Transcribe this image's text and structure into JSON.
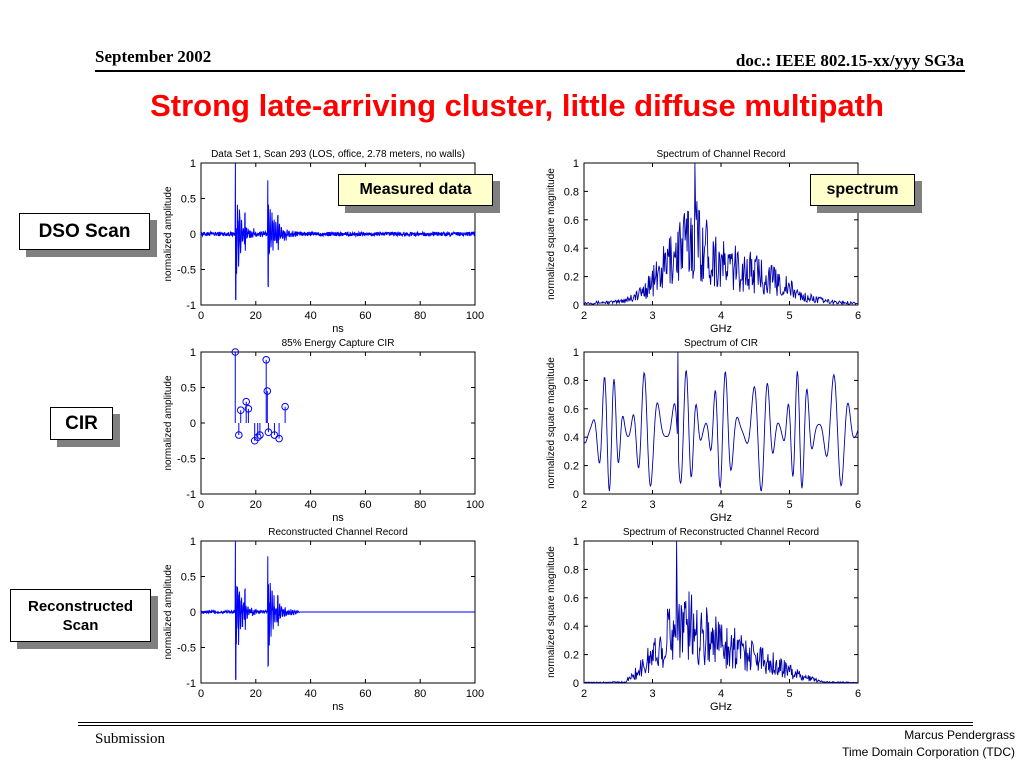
{
  "header": {
    "date": "September 2002",
    "doc": "doc.: IEEE 802.15-xx/yyy SG3a"
  },
  "title": "Strong late-arriving cluster, little diffuse multipath",
  "labels": {
    "dso_scan": "DSO Scan",
    "cir": "CIR",
    "reconstructed": "Reconstructed",
    "reconstructed_2": "Scan",
    "measured": "Measured data",
    "spectrum": "spectrum"
  },
  "footer": {
    "left": "Submission",
    "author": "Marcus Pendergrass",
    "org": "Time Domain Corporation (TDC)"
  },
  "colors": {
    "title": "#ff0000",
    "trace": "#0000ff",
    "spectrum_trace": "#0000aa",
    "callout_fill": "#ffffcc"
  },
  "chart_data": [
    {
      "id": "t1",
      "type": "line",
      "title": "Data Set 1, Scan 293 (LOS, office, 2.78 meters, no walls)",
      "xlabel": "ns",
      "ylabel": "normalized amplitude",
      "xlim": [
        0,
        100
      ],
      "ylim": [
        -1,
        1
      ],
      "xticks": [
        "0",
        "20",
        "40",
        "60",
        "80",
        "100"
      ],
      "yticks": [
        "1",
        "0.5",
        "0",
        "-0.5",
        "-1"
      ],
      "clusters": [
        {
          "t": 12.5,
          "peak": 1.0,
          "trough": -0.95,
          "decay": 2.2,
          "dur": 9
        },
        {
          "t": 16,
          "peak": 0.3,
          "trough": -0.25,
          "decay": 2.5,
          "dur": 8
        },
        {
          "t": 24.3,
          "peak": 0.75,
          "trough": -0.72,
          "decay": 2.6,
          "dur": 9
        },
        {
          "t": 28,
          "peak": 0.25,
          "trough": -0.2,
          "decay": 3,
          "dur": 8
        }
      ],
      "noise": 0.03,
      "noise_end": 100
    },
    {
      "id": "s1",
      "type": "line",
      "title": "Spectrum of Channel Record",
      "xlabel": "GHz",
      "ylabel": "normalized square magnitude",
      "xlim": [
        2,
        6
      ],
      "ylim": [
        0,
        1
      ],
      "xticks": [
        "2",
        "3",
        "4",
        "5",
        "6"
      ],
      "yticks": [
        "1",
        "0.8",
        "0.6",
        "0.4",
        "0.2",
        "0"
      ],
      "envelope": [
        [
          2,
          0.02
        ],
        [
          2.5,
          0.03
        ],
        [
          2.8,
          0.1
        ],
        [
          3.1,
          0.3
        ],
        [
          3.3,
          0.5
        ],
        [
          3.5,
          0.62
        ],
        [
          3.65,
          0.7
        ],
        [
          3.8,
          0.55
        ],
        [
          4.0,
          0.4
        ],
        [
          4.3,
          0.35
        ],
        [
          4.6,
          0.3
        ],
        [
          4.9,
          0.2
        ],
        [
          5.2,
          0.08
        ],
        [
          5.6,
          0.03
        ],
        [
          6,
          0.02
        ]
      ],
      "peak": {
        "x": 3.62,
        "y": 1.0
      }
    },
    {
      "id": "t2",
      "type": "stem",
      "title": "85% Energy Capture CIR",
      "xlabel": "ns",
      "ylabel": "normalized amplitude",
      "xlim": [
        0,
        100
      ],
      "ylim": [
        -1,
        1
      ],
      "xticks": [
        "0",
        "20",
        "40",
        "60",
        "80",
        "100"
      ],
      "yticks": [
        "1",
        "0.5",
        "0",
        "-0.5",
        "-1"
      ],
      "x": [
        12.5,
        13.8,
        14.5,
        16.5,
        17.3,
        19.6,
        20.7,
        21.5,
        23.8,
        24.2,
        24.6,
        26.8,
        28.5,
        30.7
      ],
      "y": [
        1.0,
        -0.17,
        0.18,
        0.3,
        0.2,
        -0.25,
        -0.2,
        -0.17,
        0.89,
        0.45,
        -0.13,
        -0.17,
        -0.22,
        0.23
      ]
    },
    {
      "id": "s2",
      "type": "line",
      "title": "Spectrum of CIR",
      "xlabel": "GHz",
      "ylabel": "normalized square magnitude",
      "xlim": [
        2,
        6
      ],
      "ylim": [
        0,
        1
      ],
      "xticks": [
        "2",
        "3",
        "4",
        "5",
        "6"
      ],
      "yticks": [
        "1",
        "0.8",
        "0.6",
        "0.4",
        "0.2",
        "0"
      ],
      "envelope": [
        [
          2,
          0.55
        ],
        [
          6,
          0.55
        ]
      ],
      "peak": {
        "x": 3.37,
        "y": 1.0
      }
    },
    {
      "id": "t3",
      "type": "line",
      "title": "Reconstructed Channel Record",
      "xlabel": "ns",
      "ylabel": "normalized amplitude",
      "xlim": [
        0,
        100
      ],
      "ylim": [
        -1,
        1
      ],
      "xticks": [
        "0",
        "20",
        "40",
        "60",
        "80",
        "100"
      ],
      "yticks": [
        "1",
        "0.5",
        "0",
        "-0.5",
        "-1"
      ],
      "clusters": [
        {
          "t": 12.5,
          "peak": 1.0,
          "trough": -0.95,
          "decay": 2.2,
          "dur": 9
        },
        {
          "t": 16,
          "peak": 0.3,
          "trough": -0.25,
          "decay": 2.5,
          "dur": 8
        },
        {
          "t": 24.3,
          "peak": 0.8,
          "trough": -0.75,
          "decay": 2.6,
          "dur": 9
        },
        {
          "t": 28,
          "peak": 0.22,
          "trough": -0.2,
          "decay": 3,
          "dur": 8
        }
      ],
      "noise": 0.02,
      "noise_end": 35
    },
    {
      "id": "s3",
      "type": "line",
      "title": "Spectrum of Reconstructed Channel Record",
      "xlabel": "GHz",
      "ylabel": "normalized square magnitude",
      "xlim": [
        2,
        6
      ],
      "ylim": [
        0,
        1
      ],
      "xticks": [
        "2",
        "3",
        "4",
        "5",
        "6"
      ],
      "yticks": [
        "1",
        "0.8",
        "0.6",
        "0.4",
        "0.2",
        "0"
      ],
      "envelope": [
        [
          2,
          0.005
        ],
        [
          2.6,
          0.01
        ],
        [
          2.8,
          0.12
        ],
        [
          3.1,
          0.35
        ],
        [
          3.3,
          0.55
        ],
        [
          3.45,
          0.6
        ],
        [
          3.7,
          0.5
        ],
        [
          4.0,
          0.42
        ],
        [
          4.3,
          0.32
        ],
        [
          4.6,
          0.25
        ],
        [
          4.9,
          0.15
        ],
        [
          5.2,
          0.06
        ],
        [
          5.5,
          0.01
        ],
        [
          6,
          0.005
        ]
      ],
      "peak": {
        "x": 3.35,
        "y": 1.0
      }
    }
  ]
}
